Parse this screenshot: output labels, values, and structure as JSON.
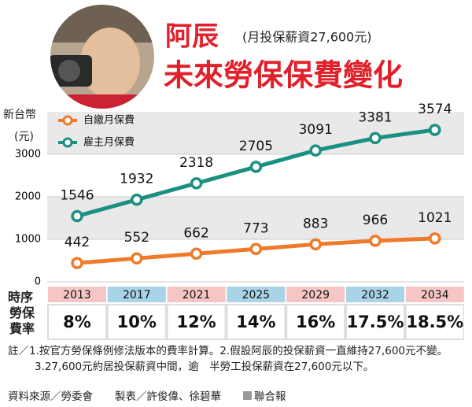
{
  "chart_data": {
    "type": "line",
    "title": "阿辰",
    "subtitle": "(月投保薪資27,600元)",
    "title2": "未來勞保保費變化",
    "y_label": [
      "新台幣",
      "(元)"
    ],
    "categories_label": "時序",
    "categories": [
      "2013",
      "2017",
      "2021",
      "2025",
      "2029",
      "2032",
      "2034"
    ],
    "series": [
      {
        "name": "自繳月保費",
        "color": "#f07a2a",
        "values": [
          442,
          552,
          662,
          773,
          883,
          966,
          1021
        ]
      },
      {
        "name": "雇主月保費",
        "color": "#1a9080",
        "values": [
          1546,
          1932,
          2318,
          2705,
          3091,
          3381,
          3574
        ]
      }
    ],
    "rates_label": "勞保費率",
    "rates": [
      "8%",
      "10%",
      "12%",
      "14%",
      "16%",
      "17.5%",
      "18.5%"
    ],
    "ylim": [
      0,
      4000
    ],
    "yticks": [
      0,
      1000,
      2000,
      3000
    ],
    "notes": "註／1.按官方勞保條例修法版本的費率計算。2.假設阿辰的投保薪資一直維持27,600元不變。3.27,600元約居投保薪資中間，逾　半勞工投保薪資在27,600元以下。",
    "source": "資料來源／勞委會",
    "maker": "製表／許俊偉、徐碧華",
    "publisher": "聯合報"
  }
}
